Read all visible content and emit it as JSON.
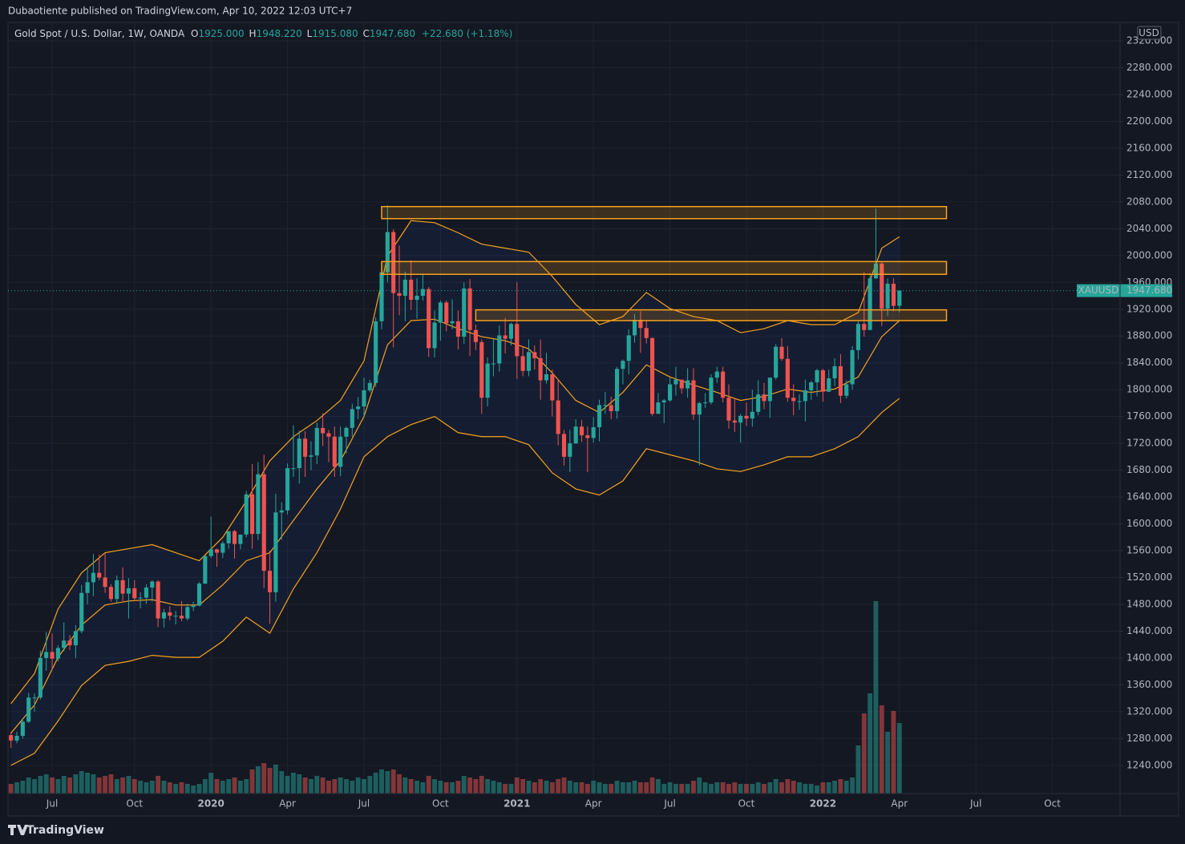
{
  "header": {
    "published": "Dubaotiente published on TradingView.com, Apr 10, 2022 12:03 UTC+7"
  },
  "legend": {
    "symbol": "Gold Spot / U.S. Dollar, 1W, OANDA",
    "open_label": "O",
    "open": "1925.000",
    "high_label": "H",
    "high": "1948.220",
    "low_label": "L",
    "low": "1915.080",
    "close_label": "C",
    "close": "1947.680",
    "change": "+22.680 (+1.18%)"
  },
  "currency": "USD",
  "price_tag": {
    "symbol": "XAUUSD",
    "price": "1947.680"
  },
  "footer": {
    "brand": "TradingView"
  },
  "chart_data": {
    "type": "candlestick",
    "up_color": "#26a69a",
    "down_color": "#ef5350",
    "open": [
      1285,
      1277,
      1284,
      1305,
      1341,
      1341,
      1400,
      1409,
      1399,
      1415,
      1426,
      1419,
      1440,
      1497,
      1513,
      1527,
      1520,
      1506,
      1488,
      1516,
      1496,
      1504,
      1489,
      1490,
      1505,
      1514,
      1459,
      1468,
      1463,
      1463,
      1459,
      1476,
      1478,
      1511,
      1552,
      1562,
      1557,
      1571,
      1589,
      1570,
      1584,
      1644,
      1585,
      1674,
      1530,
      1498,
      1617,
      1620,
      1683,
      1683,
      1727,
      1700,
      1702,
      1743,
      1735,
      1730,
      1685,
      1730,
      1743,
      1771,
      1775,
      1799,
      1810,
      1902,
      1975,
      2035,
      1944,
      1940,
      1964,
      1934,
      1940,
      1950,
      1862,
      1900,
      1930,
      1899,
      1902,
      1879,
      1951,
      1889,
      1871,
      1788,
      1839,
      1839,
      1881,
      1876,
      1898,
      1850,
      1828,
      1856,
      1847,
      1814,
      1823,
      1784,
      1734,
      1700,
      1720,
      1745,
      1732,
      1728,
      1744,
      1777,
      1777,
      1768,
      1831,
      1843,
      1881,
      1904,
      1892,
      1877,
      1764,
      1781,
      1784,
      1808,
      1815,
      1802,
      1814,
      1763,
      1780,
      1781,
      1818,
      1827,
      1788,
      1754,
      1751,
      1761,
      1757,
      1767,
      1793,
      1783,
      1818,
      1864,
      1846,
      1788,
      1783,
      1783,
      1799,
      1811,
      1829,
      1797,
      1817,
      1835,
      1791,
      1808,
      1859,
      1898,
      1889,
      1966,
      1988,
      1921,
      1958,
      1925
    ],
    "high": [
      1290,
      1290,
      1310,
      1348,
      1347,
      1411,
      1439,
      1437,
      1419,
      1453,
      1434,
      1449,
      1509,
      1535,
      1555,
      1554,
      1557,
      1510,
      1523,
      1535,
      1519,
      1516,
      1498,
      1510,
      1516,
      1516,
      1473,
      1477,
      1470,
      1485,
      1481,
      1484,
      1513,
      1553,
      1611,
      1563,
      1574,
      1589,
      1591,
      1584,
      1649,
      1689,
      1692,
      1703,
      1560,
      1645,
      1632,
      1690,
      1747,
      1739,
      1738,
      1723,
      1751,
      1765,
      1740,
      1745,
      1745,
      1745,
      1779,
      1789,
      1818,
      1815,
      1908,
      1984,
      2075,
      2039,
      2015,
      1976,
      1993,
      1966,
      1973,
      1953,
      1918,
      1933,
      1933,
      1935,
      1918,
      1960,
      1965,
      1897,
      1875,
      1848,
      1875,
      1896,
      1907,
      1900,
      1960,
      1864,
      1875,
      1866,
      1875,
      1855,
      1830,
      1816,
      1740,
      1740,
      1756,
      1755,
      1745,
      1759,
      1785,
      1797,
      1790,
      1834,
      1845,
      1890,
      1913,
      1917,
      1903,
      1878,
      1795,
      1786,
      1818,
      1834,
      1812,
      1832,
      1832,
      1782,
      1795,
      1823,
      1834,
      1834,
      1808,
      1787,
      1764,
      1781,
      1800,
      1814,
      1810,
      1818,
      1868,
      1877,
      1865,
      1808,
      1793,
      1815,
      1813,
      1831,
      1831,
      1830,
      1847,
      1853,
      1814,
      1865,
      1902,
      1975,
      1974,
      2070,
      1990,
      1966,
      1966,
      1948.22
    ],
    "low": [
      1266,
      1273,
      1280,
      1303,
      1320,
      1338,
      1381,
      1382,
      1395,
      1410,
      1412,
      1400,
      1437,
      1480,
      1492,
      1516,
      1497,
      1484,
      1482,
      1485,
      1459,
      1485,
      1474,
      1481,
      1484,
      1446,
      1445,
      1456,
      1450,
      1455,
      1456,
      1470,
      1477,
      1510,
      1549,
      1536,
      1549,
      1563,
      1548,
      1562,
      1580,
      1563,
      1576,
      1504,
      1451,
      1484,
      1576,
      1614,
      1670,
      1660,
      1670,
      1680,
      1689,
      1716,
      1692,
      1670,
      1671,
      1705,
      1730,
      1756,
      1760,
      1796,
      1804,
      1890,
      1960,
      1863,
      1911,
      1902,
      1919,
      1906,
      1933,
      1849,
      1848,
      1873,
      1887,
      1890,
      1860,
      1868,
      1850,
      1859,
      1764,
      1775,
      1820,
      1827,
      1854,
      1866,
      1816,
      1820,
      1820,
      1830,
      1785,
      1809,
      1760,
      1717,
      1687,
      1677,
      1719,
      1722,
      1677,
      1721,
      1723,
      1764,
      1756,
      1757,
      1808,
      1823,
      1870,
      1855,
      1869,
      1761,
      1770,
      1750,
      1782,
      1791,
      1794,
      1788,
      1755,
      1687,
      1773,
      1778,
      1810,
      1781,
      1742,
      1737,
      1721,
      1746,
      1745,
      1762,
      1771,
      1758,
      1815,
      1843,
      1782,
      1762,
      1770,
      1753,
      1785,
      1790,
      1782,
      1797,
      1805,
      1780,
      1787,
      1800,
      1845,
      1879,
      1889,
      1965,
      1895,
      1910,
      1917,
      1915.08
    ],
    "close": [
      1277,
      1284,
      1305,
      1341,
      1341,
      1400,
      1409,
      1399,
      1415,
      1426,
      1419,
      1440,
      1497,
      1513,
      1527,
      1520,
      1506,
      1488,
      1516,
      1496,
      1504,
      1489,
      1490,
      1505,
      1514,
      1459,
      1468,
      1463,
      1463,
      1459,
      1476,
      1478,
      1511,
      1552,
      1562,
      1557,
      1571,
      1589,
      1570,
      1584,
      1644,
      1585,
      1674,
      1530,
      1498,
      1617,
      1620,
      1683,
      1683,
      1727,
      1700,
      1702,
      1743,
      1735,
      1730,
      1685,
      1730,
      1743,
      1771,
      1775,
      1799,
      1810,
      1902,
      1975,
      2035,
      1944,
      1940,
      1964,
      1934,
      1940,
      1950,
      1862,
      1900,
      1930,
      1899,
      1902,
      1879,
      1951,
      1889,
      1871,
      1788,
      1839,
      1839,
      1881,
      1876,
      1898,
      1850,
      1828,
      1856,
      1847,
      1814,
      1823,
      1784,
      1734,
      1700,
      1720,
      1745,
      1732,
      1728,
      1744,
      1777,
      1777,
      1768,
      1831,
      1843,
      1881,
      1904,
      1892,
      1877,
      1764,
      1781,
      1784,
      1808,
      1815,
      1802,
      1814,
      1763,
      1780,
      1781,
      1818,
      1827,
      1788,
      1754,
      1751,
      1761,
      1757,
      1767,
      1793,
      1783,
      1818,
      1864,
      1846,
      1788,
      1783,
      1783,
      1799,
      1811,
      1829,
      1797,
      1817,
      1835,
      1791,
      1808,
      1859,
      1898,
      1889,
      1966,
      1988,
      1921,
      1958,
      1925,
      1947.68
    ],
    "volume": [
      12,
      14,
      16,
      20,
      18,
      22,
      24,
      20,
      18,
      22,
      20,
      24,
      28,
      26,
      24,
      20,
      22,
      24,
      18,
      20,
      22,
      18,
      16,
      14,
      16,
      22,
      16,
      14,
      12,
      14,
      12,
      10,
      12,
      18,
      26,
      18,
      16,
      18,
      20,
      16,
      18,
      30,
      34,
      38,
      32,
      36,
      28,
      22,
      26,
      24,
      20,
      18,
      22,
      20,
      16,
      18,
      20,
      18,
      16,
      20,
      18,
      22,
      26,
      30,
      28,
      30,
      24,
      20,
      18,
      16,
      14,
      22,
      18,
      16,
      14,
      14,
      16,
      22,
      20,
      18,
      22,
      18,
      16,
      14,
      12,
      12,
      20,
      18,
      16,
      14,
      18,
      16,
      14,
      18,
      20,
      16,
      14,
      14,
      12,
      16,
      14,
      12,
      12,
      16,
      14,
      14,
      16,
      14,
      14,
      20,
      18,
      12,
      14,
      12,
      12,
      12,
      16,
      20,
      14,
      12,
      14,
      14,
      12,
      14,
      12,
      12,
      12,
      14,
      12,
      14,
      18,
      14,
      18,
      16,
      14,
      12,
      12,
      10,
      14,
      14,
      16,
      18,
      16,
      20,
      60,
      100,
      125,
      240,
      110,
      77,
      103,
      88
    ],
    "volume_lim": [
      0,
      300
    ],
    "bands": {
      "color": "#f7a21b",
      "x": [
        0,
        4,
        8,
        12,
        16,
        20,
        24,
        28,
        32,
        36,
        40,
        44,
        48,
        52,
        56,
        60,
        64,
        68,
        72,
        76,
        80,
        84,
        88,
        92,
        96,
        100,
        104,
        108,
        112,
        116,
        120,
        124,
        128,
        132,
        136,
        140,
        144,
        148,
        151
      ],
      "upper": [
        1332,
        1377,
        1473,
        1527,
        1557,
        1563,
        1569,
        1557,
        1545,
        1580,
        1634,
        1694,
        1730,
        1754,
        1784,
        1843,
        1999,
        2052,
        2049,
        2034,
        2017,
        2011,
        2005,
        1969,
        1927,
        1897,
        1909,
        1945,
        1921,
        1909,
        1903,
        1885,
        1891,
        1903,
        1897,
        1897,
        1915,
        2011,
        2028
      ],
      "middle": [
        1288,
        1330,
        1401,
        1449,
        1479,
        1485,
        1487,
        1479,
        1479,
        1509,
        1545,
        1557,
        1605,
        1652,
        1694,
        1760,
        1867,
        1903,
        1905,
        1891,
        1879,
        1873,
        1861,
        1825,
        1784,
        1766,
        1796,
        1837,
        1819,
        1807,
        1796,
        1784,
        1790,
        1801,
        1796,
        1801,
        1819,
        1879,
        1903
      ],
      "lower": [
        1240,
        1258,
        1306,
        1359,
        1389,
        1395,
        1404,
        1401,
        1401,
        1425,
        1461,
        1437,
        1503,
        1557,
        1622,
        1700,
        1730,
        1748,
        1760,
        1736,
        1730,
        1730,
        1718,
        1676,
        1652,
        1643,
        1664,
        1712,
        1703,
        1694,
        1682,
        1678,
        1688,
        1700,
        1700,
        1712,
        1730,
        1766,
        1787
      ]
    },
    "zones": [
      {
        "x": [
          63,
          159
        ],
        "y": [
          2055,
          2073
        ]
      },
      {
        "x": [
          63,
          159
        ],
        "y": [
          1972,
          1991
        ]
      },
      {
        "x": [
          79,
          159
        ],
        "y": [
          1903,
          1919
        ]
      }
    ],
    "zone_color": "#f7a21b",
    "grid": true,
    "xlim": [
      -0.5,
      188.5
    ],
    "xticks": [
      {
        "value": 7,
        "label": "Jul"
      },
      {
        "value": 21,
        "label": "Oct"
      },
      {
        "value": 34,
        "label": "2020"
      },
      {
        "value": 47,
        "label": "Apr"
      },
      {
        "value": 60,
        "label": "Jul"
      },
      {
        "value": 73,
        "label": "Oct"
      },
      {
        "value": 86,
        "label": "2021"
      },
      {
        "value": 99,
        "label": "Apr"
      },
      {
        "value": 112,
        "label": "Jul"
      },
      {
        "value": 125,
        "label": "Oct"
      },
      {
        "value": 138,
        "label": "2022"
      },
      {
        "value": 151,
        "label": "Apr"
      },
      {
        "value": 164,
        "label": "Jul"
      },
      {
        "value": 177,
        "label": "Oct"
      }
    ],
    "ylim": [
      1198,
      2347.5
    ],
    "yticks": [
      {
        "value": 1240,
        "label": "1240.000"
      },
      {
        "value": 1280,
        "label": "1280.000"
      },
      {
        "value": 1320,
        "label": "1320.000"
      },
      {
        "value": 1360,
        "label": "1360.000"
      },
      {
        "value": 1400,
        "label": "1400.000"
      },
      {
        "value": 1440,
        "label": "1440.000"
      },
      {
        "value": 1480,
        "label": "1480.000"
      },
      {
        "value": 1520,
        "label": "1520.000"
      },
      {
        "value": 1560,
        "label": "1560.000"
      },
      {
        "value": 1600,
        "label": "1600.000"
      },
      {
        "value": 1640,
        "label": "1640.000"
      },
      {
        "value": 1680,
        "label": "1680.000"
      },
      {
        "value": 1720,
        "label": "1720.000"
      },
      {
        "value": 1760,
        "label": "1760.000"
      },
      {
        "value": 1800,
        "label": "1800.000"
      },
      {
        "value": 1840,
        "label": "1840.000"
      },
      {
        "value": 1880,
        "label": "1880.000"
      },
      {
        "value": 1920,
        "label": "1920.000"
      },
      {
        "value": 1960,
        "label": "1960.000"
      },
      {
        "value": 2000,
        "label": "2000.000"
      },
      {
        "value": 2040,
        "label": "2040.000"
      },
      {
        "value": 2080,
        "label": "2080.000"
      },
      {
        "value": 2120,
        "label": "2120.000"
      },
      {
        "value": 2160,
        "label": "2160.000"
      },
      {
        "value": 2200,
        "label": "2200.000"
      },
      {
        "value": 2240,
        "label": "2240.000"
      },
      {
        "value": 2280,
        "label": "2280.000"
      },
      {
        "value": 2320,
        "label": "2320.000"
      }
    ]
  }
}
